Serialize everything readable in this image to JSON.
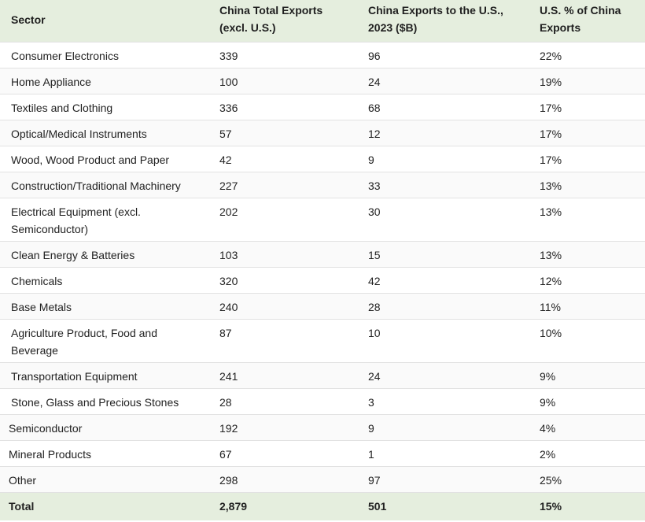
{
  "header": {
    "sector": "Sector",
    "total_exports": "China Total Exports (excl. U.S.)",
    "exports_us": "China Exports to the U.S., 2023 ($B)",
    "us_pct": "U.S. % of China Exports"
  },
  "rows": [
    {
      "sector": "Consumer Electronics",
      "total": "339",
      "us": "96",
      "pct": "22%"
    },
    {
      "sector": "Home Appliance",
      "total": "100",
      "us": "24",
      "pct": "19%"
    },
    {
      "sector": "Textiles and Clothing",
      "total": "336",
      "us": "68",
      "pct": "17%"
    },
    {
      "sector": "Optical/Medical Instruments",
      "total": "57",
      "us": "12",
      "pct": "17%"
    },
    {
      "sector": "Wood, Wood Product and Paper",
      "total": "42",
      "us": "9",
      "pct": "17%"
    },
    {
      "sector": "Construction/Traditional Machinery",
      "total": "227",
      "us": "33",
      "pct": "13%"
    },
    {
      "sector": "Electrical Equipment (excl. Semiconductor)",
      "total": "202",
      "us": "30",
      "pct": "13%"
    },
    {
      "sector": "Clean Energy & Batteries",
      "total": "103",
      "us": "15",
      "pct": "13%"
    },
    {
      "sector": "Chemicals",
      "total": "320",
      "us": "42",
      "pct": "12%"
    },
    {
      "sector": "Base Metals",
      "total": "240",
      "us": "28",
      "pct": "11%"
    },
    {
      "sector": "Agriculture Product, Food and Beverage",
      "total": "87",
      "us": "10",
      "pct": "10%"
    },
    {
      "sector": "Transportation Equipment",
      "total": "241",
      "us": "24",
      "pct": "9%"
    },
    {
      "sector": "Stone, Glass and Precious Stones",
      "total": "28",
      "us": "3",
      "pct": "9%"
    },
    {
      "sector": "Semiconductor",
      "total": "192",
      "us": "9",
      "pct": "4%"
    },
    {
      "sector": "Mineral Products",
      "total": "67",
      "us": "1",
      "pct": "2%"
    },
    {
      "sector": "Other",
      "total": "298",
      "us": "97",
      "pct": "25%"
    }
  ],
  "total": {
    "sector": "Total",
    "total": "2,879",
    "us": "501",
    "pct": "15%"
  }
}
